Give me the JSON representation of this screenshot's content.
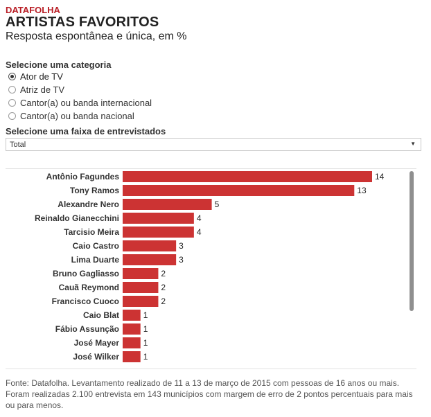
{
  "header": {
    "brand": "DATAFOLHA",
    "title": "ARTISTAS FAVORITOS",
    "subtitle": "Resposta espontânea e única, em %"
  },
  "category_selector": {
    "label": "Selecione uma categoria",
    "options": [
      "Ator de TV",
      "Atriz de TV",
      "Cantor(a) ou banda internacional",
      "Cantor(a) ou banda nacional"
    ],
    "selected": "Ator de TV"
  },
  "range_selector": {
    "label": "Selecione uma faixa de entrevistados",
    "value": "Total"
  },
  "footnote": "Fonte: Datafolha. Levantamento realizado de 11 a 13 de março de 2015 com pessoas de 16 anos ou mais. Foram realizadas 2.100 entrevista em 143 municípios com margem de erro de 2 pontos percentuais para mais ou para menos.",
  "colors": {
    "bar": "#cc3333",
    "brand": "#b81d24"
  },
  "chart_data": {
    "type": "bar",
    "orientation": "horizontal",
    "categories": [
      "Antônio Fagundes",
      "Tony Ramos",
      "Alexandre Nero",
      "Reinaldo Gianecchini",
      "Tarcisio Meira",
      "Caio Castro",
      "Lima Duarte",
      "Bruno Gagliasso",
      "Cauã Reymond",
      "Francisco Cuoco",
      "Caio Blat",
      "Fábio Assunção",
      "José Mayer",
      "José Wilker"
    ],
    "values": [
      14,
      13,
      5,
      4,
      4,
      3,
      3,
      2,
      2,
      2,
      1,
      1,
      1,
      1
    ],
    "xlim": [
      0,
      14
    ],
    "grid": false,
    "data_labels": true
  }
}
